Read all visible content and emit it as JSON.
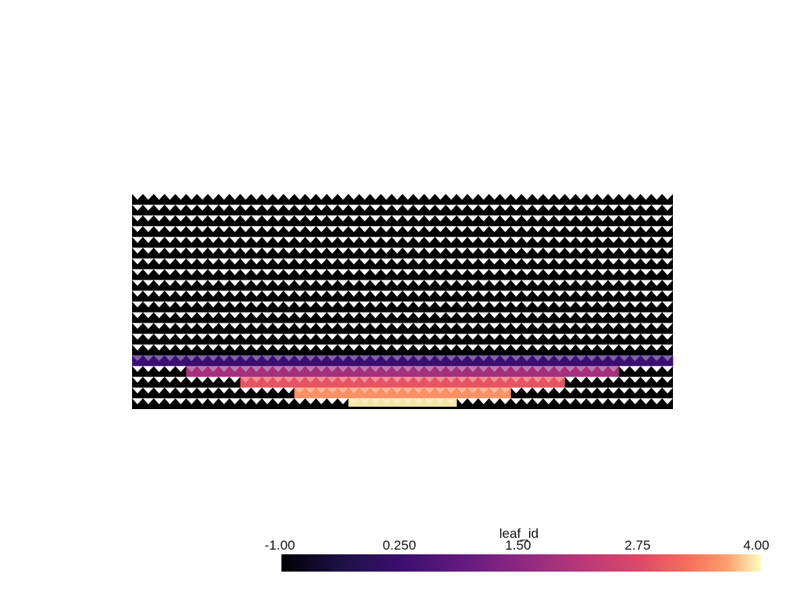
{
  "scalar_bar": {
    "title": "leaf_id",
    "range": [
      -1.0,
      4.0
    ],
    "tick_labels": [
      "-1.00",
      "0.250",
      "1.50",
      "2.75",
      "4.00"
    ],
    "colormap": "magma"
  },
  "mesh": {
    "columns": 50,
    "rows": 20,
    "background_color": "#000000",
    "edge_color": "#ffffff",
    "leaf_bands": [
      {
        "leaf_id": 0,
        "row": 15,
        "col_start": 0,
        "col_end": 49,
        "color": "#3b0f70"
      },
      {
        "leaf_id": 1,
        "row": 16,
        "col_start": 5,
        "col_end": 44,
        "color": "#a3307e"
      },
      {
        "leaf_id": 2,
        "row": 17,
        "col_start": 10,
        "col_end": 39,
        "color": "#e85362"
      },
      {
        "leaf_id": 3,
        "row": 18,
        "col_start": 15,
        "col_end": 34,
        "color": "#fc9065"
      },
      {
        "leaf_id": 4,
        "row": 19,
        "col_start": 20,
        "col_end": 29,
        "color": "#f3e6a8"
      }
    ]
  }
}
